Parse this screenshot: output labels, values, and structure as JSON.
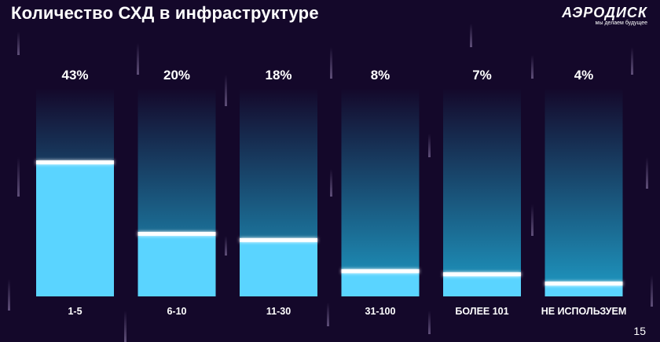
{
  "title": "Количество СХД в инфраструктуре",
  "logo": {
    "text": "АЭРОДИСК",
    "tagline": "мы делаем будущее"
  },
  "page_number": "15",
  "colors": {
    "background": "#14082a",
    "bar_fill": "#5ad4ff",
    "bar_track_top": "#14082a",
    "bar_track_bottom": "#1e9ac4",
    "marker": "#ffffff",
    "text": "#ffffff"
  },
  "chart_data": {
    "type": "bar",
    "title": "Количество СХД в инфраструктуре",
    "xlabel": "",
    "ylabel": "",
    "ylim": [
      0,
      100
    ],
    "grid": false,
    "legend": "none",
    "categories": [
      "1-5",
      "6-10",
      "11-30",
      "31-100",
      "БОЛЕЕ 101",
      "НЕ ИСПОЛЬЗУЕМ"
    ],
    "values": [
      43,
      20,
      18,
      8,
      7,
      4
    ],
    "value_labels": [
      "43%",
      "20%",
      "18%",
      "8%",
      "7%",
      "4%"
    ]
  }
}
